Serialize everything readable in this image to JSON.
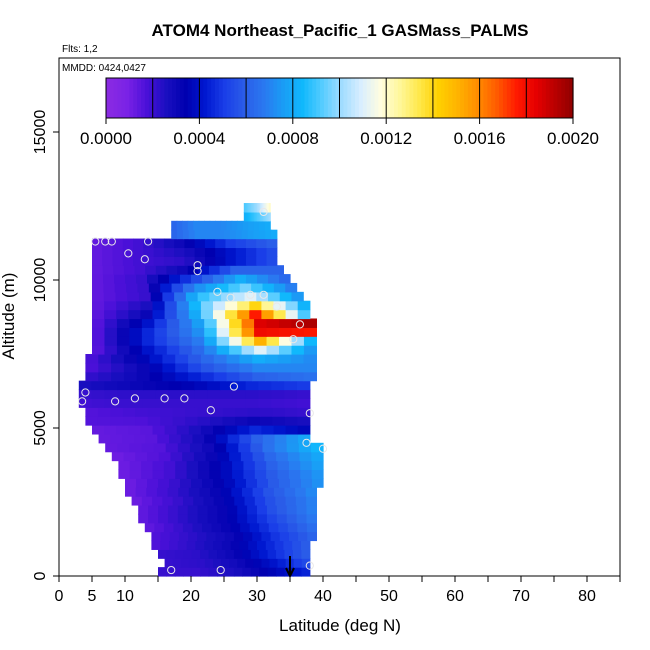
{
  "chart_data": {
    "type": "heatmap",
    "title": "ATOM4 Northeast_Pacific_1 GASMass_PALMS",
    "subtitle_flights": "Flts: 1,2",
    "subtitle_dates": "MMDD: 0424,0427",
    "xlabel": "Latitude (deg N)",
    "ylabel": "Altitude (m)",
    "xlim": [
      0,
      85
    ],
    "ylim": [
      0,
      17500
    ],
    "x_ticks": [
      0,
      5,
      10,
      20,
      30,
      40,
      50,
      60,
      70,
      80
    ],
    "y_ticks": [
      0,
      5000,
      10000,
      15000
    ],
    "colorbar": {
      "range": [
        0,
        0.002
      ],
      "tick_labels": [
        "0.0000",
        "0.0004",
        "0.0008",
        "0.0012",
        "0.0016",
        "0.0020"
      ],
      "tick_values": [
        0,
        0.0004,
        0.0008,
        0.0012,
        0.0016,
        0.002
      ],
      "colors": [
        "#8a2be2",
        "#7a22e6",
        "#4a10d8",
        "#1a0fc0",
        "#0000b0",
        "#0018d0",
        "#1a3ee8",
        "#2a5ce8",
        "#2a78f0",
        "#1a9cf5",
        "#10b8fc",
        "#55ccff",
        "#a0dcff",
        "#d8eeff",
        "#fffde0",
        "#fff79a",
        "#ffe84a",
        "#ffd000",
        "#ffb200",
        "#ff8c00",
        "#ff5a00",
        "#ff1a00",
        "#e60000",
        "#b80000",
        "#8b0000"
      ]
    },
    "arrow_latitude": 35,
    "grid": false,
    "legend_placement": "colorbar-top",
    "observation_points": [
      {
        "lat": 5.5,
        "alt": 11300
      },
      {
        "lat": 7,
        "alt": 11300
      },
      {
        "lat": 8,
        "alt": 11300
      },
      {
        "lat": 10.5,
        "alt": 10900
      },
      {
        "lat": 13.5,
        "alt": 11300
      },
      {
        "lat": 13,
        "alt": 10700
      },
      {
        "lat": 21,
        "alt": 10500
      },
      {
        "lat": 21,
        "alt": 10300
      },
      {
        "lat": 24,
        "alt": 9600
      },
      {
        "lat": 26,
        "alt": 9400
      },
      {
        "lat": 29,
        "alt": 9500
      },
      {
        "lat": 31,
        "alt": 9500
      },
      {
        "lat": 33,
        "alt": 9100
      },
      {
        "lat": 36.5,
        "alt": 8500
      },
      {
        "lat": 35.5,
        "alt": 8000
      },
      {
        "lat": 31,
        "alt": 12300
      },
      {
        "lat": 4,
        "alt": 6200
      },
      {
        "lat": 3.5,
        "alt": 5900
      },
      {
        "lat": 8.5,
        "alt": 5900
      },
      {
        "lat": 11.5,
        "alt": 6000
      },
      {
        "lat": 16,
        "alt": 6000
      },
      {
        "lat": 19,
        "alt": 6000
      },
      {
        "lat": 23,
        "alt": 5600
      },
      {
        "lat": 26.5,
        "alt": 6400
      },
      {
        "lat": 38,
        "alt": 5500
      },
      {
        "lat": 37.5,
        "alt": 4500
      },
      {
        "lat": 40,
        "alt": 4300
      },
      {
        "lat": 17,
        "alt": 200
      },
      {
        "lat": 24.5,
        "alt": 200
      },
      {
        "lat": 38,
        "alt": 350
      }
    ],
    "field": {
      "row_height_m": 300,
      "rows": [
        {
          "alt": 0,
          "lat": [
            15,
            38
          ],
          "values": [
            0.0002,
            0.0002,
            0.00025,
            0.00035,
            0.00045
          ]
        },
        {
          "alt": 300,
          "lat": [
            16,
            38
          ],
          "values": [
            0.0002,
            0.00022,
            0.00028,
            0.0004,
            0.00055
          ]
        },
        {
          "alt": 600,
          "lat": [
            15,
            38
          ],
          "values": [
            0.0002,
            0.00022,
            0.0003,
            0.00045,
            0.0006
          ]
        },
        {
          "alt": 900,
          "lat": [
            14,
            38
          ],
          "values": [
            0.00015,
            0.00022,
            0.0003,
            0.00045,
            0.0006
          ]
        },
        {
          "alt": 1200,
          "lat": [
            14,
            39
          ],
          "values": [
            0.00015,
            0.00022,
            0.0003,
            0.00048,
            0.00062
          ]
        },
        {
          "alt": 1500,
          "lat": [
            13,
            39
          ],
          "values": [
            0.00012,
            0.00022,
            0.00032,
            0.0005,
            0.00065
          ]
        },
        {
          "alt": 1800,
          "lat": [
            12,
            39
          ],
          "values": [
            0.00012,
            0.00022,
            0.00032,
            0.00052,
            0.00068
          ]
        },
        {
          "alt": 2100,
          "lat": [
            12,
            39
          ],
          "values": [
            0.00012,
            0.00022,
            0.00032,
            0.00055,
            0.0007
          ]
        },
        {
          "alt": 2400,
          "lat": [
            11,
            39
          ],
          "values": [
            0.0001,
            0.0002,
            0.00032,
            0.00055,
            0.0007
          ]
        },
        {
          "alt": 2700,
          "lat": [
            10,
            39
          ],
          "values": [
            0.0001,
            0.0002,
            0.00032,
            0.00056,
            0.00072
          ]
        },
        {
          "alt": 3000,
          "lat": [
            10,
            40
          ],
          "values": [
            0.0001,
            0.0002,
            0.00034,
            0.00058,
            0.00074
          ]
        },
        {
          "alt": 3300,
          "lat": [
            9,
            40
          ],
          "values": [
            0.0001,
            0.00018,
            0.00034,
            0.00058,
            0.00075
          ]
        },
        {
          "alt": 3600,
          "lat": [
            9,
            40
          ],
          "values": [
            0.0001,
            0.00018,
            0.00034,
            0.0006,
            0.00078
          ]
        },
        {
          "alt": 3900,
          "lat": [
            8,
            40
          ],
          "values": [
            0.0001,
            0.00016,
            0.00032,
            0.00062,
            0.0008
          ]
        },
        {
          "alt": 4200,
          "lat": [
            7,
            40
          ],
          "values": [
            0.00012,
            0.00015,
            0.0003,
            0.00065,
            0.00085
          ]
        },
        {
          "alt": 4500,
          "lat": [
            6,
            38
          ],
          "values": [
            0.00012,
            0.00014,
            0.00028,
            0.0006,
            0.0008
          ]
        },
        {
          "alt": 4800,
          "lat": [
            5,
            38
          ],
          "values": [
            0.00012,
            0.00014,
            0.00026,
            0.00045,
            0.00035
          ]
        },
        {
          "alt": 5100,
          "lat": [
            4,
            38
          ],
          "values": [
            0.00015,
            0.00016,
            0.00022,
            0.0003,
            0.00025
          ]
        },
        {
          "alt": 5400,
          "lat": [
            4,
            38
          ],
          "values": [
            0.00015,
            0.00018,
            0.0002,
            0.00022,
            0.0002
          ]
        },
        {
          "alt": 5700,
          "lat": [
            3,
            38
          ],
          "values": [
            0.00018,
            0.0002,
            0.0002,
            0.0002,
            0.00018
          ]
        },
        {
          "alt": 6000,
          "lat": [
            3,
            38
          ],
          "values": [
            0.0002,
            0.00022,
            0.00022,
            0.00022,
            0.0002
          ]
        },
        {
          "alt": 6300,
          "lat": [
            3,
            38
          ],
          "values": [
            0.00025,
            0.0003,
            0.00035,
            0.00045,
            0.0005
          ]
        },
        {
          "alt": 6600,
          "lat": [
            4,
            39
          ],
          "values": [
            0.0002,
            0.0003,
            0.00045,
            0.0006,
            0.00065
          ]
        },
        {
          "alt": 6900,
          "lat": [
            4,
            39
          ],
          "values": [
            0.00015,
            0.0003,
            0.00055,
            0.0007,
            0.0007
          ]
        },
        {
          "alt": 7200,
          "lat": [
            4,
            39
          ],
          "values": [
            0.00015,
            0.00035,
            0.0006,
            0.0008,
            0.0007
          ]
        },
        {
          "alt": 7500,
          "lat": [
            5,
            39
          ],
          "values": [
            0.00012,
            0.0004,
            0.00065,
            0.0011,
            0.0007
          ]
        },
        {
          "alt": 7800,
          "lat": [
            5,
            39
          ],
          "values": [
            0.00012,
            0.00045,
            0.0007,
            0.0015,
            0.00075
          ]
        },
        {
          "alt": 8100,
          "lat": [
            5,
            39
          ],
          "values": [
            0.00012,
            0.00045,
            0.00075,
            0.0018,
            0.00175
          ]
        },
        {
          "alt": 8400,
          "lat": [
            5,
            39
          ],
          "values": [
            0.00012,
            0.0004,
            0.0008,
            0.00185,
            0.00195
          ]
        },
        {
          "alt": 8700,
          "lat": [
            5,
            38
          ],
          "values": [
            0.00012,
            0.0003,
            0.00085,
            0.00175,
            0.0008
          ]
        },
        {
          "alt": 9000,
          "lat": [
            5,
            38
          ],
          "values": [
            0.00012,
            0.00025,
            0.0009,
            0.0014,
            0.00075
          ]
        },
        {
          "alt": 9300,
          "lat": [
            5,
            37
          ],
          "values": [
            0.00012,
            0.0002,
            0.00085,
            0.0011,
            0.0007
          ]
        },
        {
          "alt": 9600,
          "lat": [
            5,
            36
          ],
          "values": [
            0.00012,
            0.0002,
            0.0007,
            0.00095,
            0.00065
          ]
        },
        {
          "alt": 9900,
          "lat": [
            5,
            35
          ],
          "values": [
            0.00012,
            0.0002,
            0.0005,
            0.0008,
            0.0006
          ]
        },
        {
          "alt": 10200,
          "lat": [
            5,
            34
          ],
          "values": [
            0.00012,
            0.00018,
            0.0003,
            0.0006,
            0.0006
          ]
        },
        {
          "alt": 10500,
          "lat": [
            5,
            33
          ],
          "values": [
            0.00012,
            0.00018,
            0.00022,
            0.0004,
            0.00055
          ]
        },
        {
          "alt": 10800,
          "lat": [
            5,
            33
          ],
          "values": [
            0.00012,
            0.00018,
            0.00025,
            0.0004,
            0.00055
          ]
        },
        {
          "alt": 11100,
          "lat": [
            5,
            33
          ],
          "values": [
            0.00012,
            0.00018,
            0.0003,
            0.0005,
            0.0006
          ]
        },
        {
          "alt": 11400,
          "lat": [
            17,
            33
          ],
          "values": [
            0.0006,
            0.0007,
            0.0007,
            0.00075,
            0.0008
          ]
        },
        {
          "alt": 11700,
          "lat": [
            17,
            32
          ],
          "values": [
            0.0006,
            0.0007,
            0.0007,
            0.00075,
            0.0008
          ]
        },
        {
          "alt": 12000,
          "lat": [
            28,
            32
          ],
          "values": [
            0.0008,
            0.00085,
            0.0009,
            0.00095,
            0.001
          ]
        },
        {
          "alt": 12300,
          "lat": [
            28,
            32
          ],
          "values": [
            0.0009,
            0.00095,
            0.001,
            0.0011,
            0.0012
          ]
        }
      ]
    }
  }
}
